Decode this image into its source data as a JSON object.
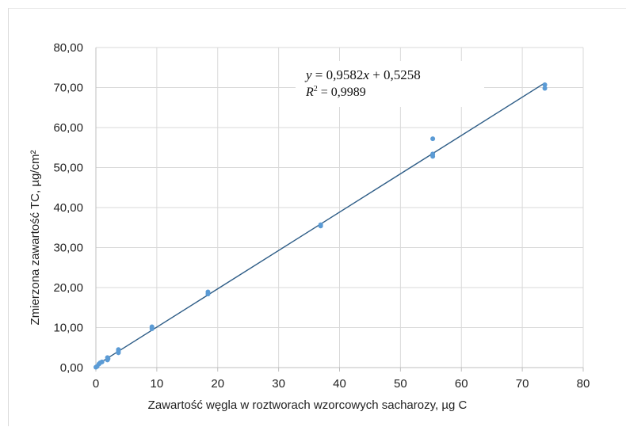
{
  "chart_data": {
    "type": "scatter",
    "xlabel": "Zawartość węgla w roztworach wzorcowych sacharozy, µg C",
    "ylabel": "Zmierzona zawartość TC, µg/cm²",
    "xlim": [
      0,
      80
    ],
    "ylim": [
      0,
      80
    ],
    "x_ticks": [
      "0",
      "10",
      "20",
      "30",
      "40",
      "50",
      "60",
      "70",
      "80"
    ],
    "y_ticks": [
      "0,00",
      "10,00",
      "20,00",
      "30,00",
      "40,00",
      "50,00",
      "60,00",
      "70,00",
      "80,00"
    ],
    "grid": true,
    "series": [
      {
        "color": "#5b9bd5",
        "points": [
          [
            0,
            0.1
          ],
          [
            0.2,
            0.3
          ],
          [
            0.5,
            0.9
          ],
          [
            0.7,
            1.2
          ],
          [
            1.0,
            1.4
          ],
          [
            1.9,
            1.9
          ],
          [
            1.9,
            2.5
          ],
          [
            2.0,
            2.2
          ],
          [
            3.7,
            3.7
          ],
          [
            3.7,
            4.1
          ],
          [
            3.7,
            4.5
          ],
          [
            9.2,
            9.7
          ],
          [
            9.2,
            10.2
          ],
          [
            18.4,
            18.4
          ],
          [
            18.4,
            18.9
          ],
          [
            36.9,
            35.4
          ],
          [
            36.9,
            35.7
          ],
          [
            55.3,
            52.8
          ],
          [
            55.3,
            53.4
          ],
          [
            55.3,
            57.2
          ],
          [
            73.7,
            69.8
          ],
          [
            73.7,
            70.7
          ]
        ]
      }
    ],
    "trendline": {
      "color": "#2e5d87",
      "slope": 0.9582,
      "intercept": 0.5258,
      "x_range": [
        0,
        73.7
      ],
      "equation_parts": {
        "y": "y",
        "equals": " = 0,9582",
        "x": "x",
        "rest": " + 0,5258"
      },
      "r2_parts": {
        "R": "R",
        "sup": "2",
        "rest": " = 0,9989"
      }
    }
  }
}
